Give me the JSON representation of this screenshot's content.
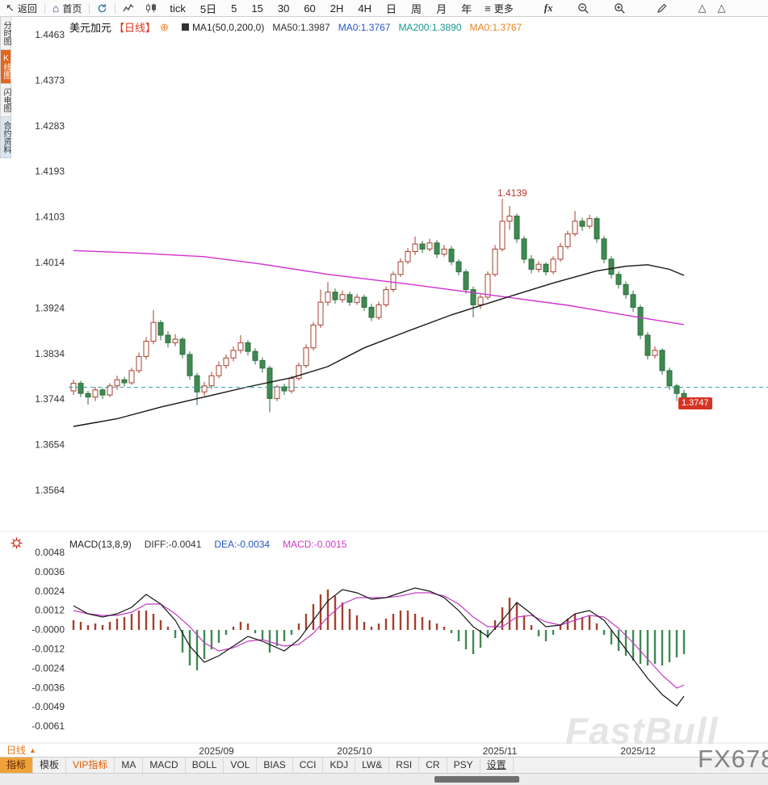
{
  "toolbar": {
    "back_label": "返回",
    "home_label": "首页",
    "periods": [
      "tick",
      "5日",
      "5",
      "15",
      "30",
      "60",
      "2H",
      "4H",
      "日",
      "周",
      "月",
      "年"
    ],
    "more_label": "更多",
    "fx_label": "fx"
  },
  "sidebar": {
    "items": [
      {
        "label": "分时图",
        "state": ""
      },
      {
        "label": "K线图",
        "state": "active"
      },
      {
        "label": "闪电图",
        "state": ""
      },
      {
        "label": "合约资料",
        "state": "info"
      }
    ]
  },
  "chart_header": {
    "symbol": "美元加元",
    "period_tag": "【日线】",
    "ma_title": "MA1(50,0,200,0)",
    "ma50": "MA50:1.3987",
    "ma0_blue": "MA0:1.3767",
    "ma200": "MA200:1.3890",
    "ma0_orange": "MA0:1.3767"
  },
  "macd_header": {
    "title": "MACD(13,8,9)",
    "diff": "DIFF:-0.0041",
    "dea": "DEA:-0.0034",
    "macd": "MACD:-0.0015"
  },
  "price_axis": {
    "labels": [
      "1.4463",
      "1.4373",
      "1.4283",
      "1.4193",
      "1.4103",
      "1.4014",
      "1.3924",
      "1.3834",
      "1.3744",
      "1.3654",
      "1.3564"
    ]
  },
  "macd_axis": {
    "labels": [
      "0.0048",
      "0.0036",
      "0.0024",
      "0.0012",
      "-0.0000",
      "-0.0012",
      "-0.0024",
      "-0.0036",
      "-0.0049",
      "-0.0061"
    ]
  },
  "annotations": {
    "high_label": "1.4139",
    "last_label": "1.3747",
    "ref_value": 1.3767
  },
  "bottom": {
    "period_selector": "日线",
    "selector_caret": "▲",
    "tabs": [
      {
        "label": "指标",
        "state": "selected"
      },
      {
        "label": "模板",
        "state": ""
      },
      {
        "label": "VIP指标",
        "state": "vip"
      },
      {
        "label": "MA",
        "state": ""
      },
      {
        "label": "MACD",
        "state": ""
      },
      {
        "label": "BOLL",
        "state": ""
      },
      {
        "label": "VOL",
        "state": ""
      },
      {
        "label": "BIAS",
        "state": ""
      },
      {
        "label": "CCI",
        "state": ""
      },
      {
        "label": "KDJ",
        "state": ""
      },
      {
        "label": "LW&",
        "state": ""
      },
      {
        "label": "RSI",
        "state": ""
      },
      {
        "label": "CR",
        "state": ""
      },
      {
        "label": "PSY",
        "state": ""
      },
      {
        "label": "设置",
        "state": "settings"
      }
    ]
  },
  "watermarks": {
    "fastbull": "FastBull",
    "fx678": "FX678"
  },
  "colors": {
    "up": "#a5402e",
    "down": "#2c6e3d",
    "down_fill": "#3f8a51",
    "ma50": "#161616",
    "ma200": "#d12fd1",
    "ref_line": "#2f9e9e",
    "diff_line": "#161616",
    "dea_line": "#c43ac4",
    "accent_orange": "#e67817",
    "badge_red": "#d63426"
  },
  "chart_data": {
    "type": "candlestick",
    "symbol": "美元加元 (USD/CAD)",
    "period": "日线",
    "ylim": [
      1.3564,
      1.4463
    ],
    "high": 1.4139,
    "last_close": 1.3747,
    "ma50_last": 1.3987,
    "ma200_last": 1.389,
    "x_months": [
      {
        "label": "2025/09",
        "index": 20
      },
      {
        "label": "2025/10",
        "index": 39
      },
      {
        "label": "2025/11",
        "index": 59
      },
      {
        "label": "2025/12",
        "index": 78
      }
    ],
    "candles": [
      [
        1.376,
        1.3782,
        1.3752,
        1.3775
      ],
      [
        1.3775,
        1.378,
        1.3748,
        1.3755
      ],
      [
        1.3755,
        1.376,
        1.3733,
        1.3748
      ],
      [
        1.3748,
        1.3768,
        1.374,
        1.3762
      ],
      [
        1.3762,
        1.3766,
        1.3744,
        1.3752
      ],
      [
        1.3752,
        1.3775,
        1.3748,
        1.377
      ],
      [
        1.377,
        1.379,
        1.3762,
        1.3782
      ],
      [
        1.3782,
        1.3788,
        1.3768,
        1.3776
      ],
      [
        1.3776,
        1.3806,
        1.3772,
        1.38
      ],
      [
        1.38,
        1.3836,
        1.3795,
        1.3828
      ],
      [
        1.3828,
        1.3866,
        1.3822,
        1.3858
      ],
      [
        1.3858,
        1.392,
        1.3852,
        1.3895
      ],
      [
        1.3895,
        1.39,
        1.386,
        1.387
      ],
      [
        1.387,
        1.3878,
        1.3846,
        1.3855
      ],
      [
        1.3855,
        1.3872,
        1.3848,
        1.3862
      ],
      [
        1.3862,
        1.3866,
        1.3824,
        1.3832
      ],
      [
        1.3832,
        1.3838,
        1.3782,
        1.379
      ],
      [
        1.379,
        1.3796,
        1.3732,
        1.3758
      ],
      [
        1.3758,
        1.3778,
        1.375,
        1.377
      ],
      [
        1.377,
        1.3798,
        1.3764,
        1.379
      ],
      [
        1.379,
        1.3818,
        1.3785,
        1.381
      ],
      [
        1.381,
        1.3832,
        1.3804,
        1.3825
      ],
      [
        1.3825,
        1.3848,
        1.3818,
        1.384
      ],
      [
        1.384,
        1.387,
        1.3834,
        1.3855
      ],
      [
        1.3855,
        1.386,
        1.383,
        1.3838
      ],
      [
        1.3838,
        1.3844,
        1.3812,
        1.382
      ],
      [
        1.382,
        1.3826,
        1.3796,
        1.3805
      ],
      [
        1.3805,
        1.381,
        1.3718,
        1.3745
      ],
      [
        1.3745,
        1.3772,
        1.374,
        1.3768
      ],
      [
        1.3768,
        1.3774,
        1.3752,
        1.376
      ],
      [
        1.376,
        1.379,
        1.3755,
        1.3785
      ],
      [
        1.3785,
        1.3816,
        1.378,
        1.381
      ],
      [
        1.381,
        1.3852,
        1.3805,
        1.3845
      ],
      [
        1.3845,
        1.3896,
        1.384,
        1.389
      ],
      [
        1.389,
        1.396,
        1.3884,
        1.3935
      ],
      [
        1.3935,
        1.3975,
        1.3928,
        1.3955
      ],
      [
        1.3955,
        1.3962,
        1.3932,
        1.394
      ],
      [
        1.394,
        1.3958,
        1.3934,
        1.395
      ],
      [
        1.395,
        1.3956,
        1.3928,
        1.3935
      ],
      [
        1.3935,
        1.3952,
        1.393,
        1.3945
      ],
      [
        1.3945,
        1.395,
        1.3918,
        1.3925
      ],
      [
        1.3925,
        1.3932,
        1.3898,
        1.3905
      ],
      [
        1.3905,
        1.3936,
        1.39,
        1.393
      ],
      [
        1.393,
        1.3966,
        1.3925,
        1.396
      ],
      [
        1.396,
        1.3996,
        1.3955,
        1.399
      ],
      [
        1.399,
        1.4022,
        1.3985,
        1.4015
      ],
      [
        1.4015,
        1.4042,
        1.401,
        1.4035
      ],
      [
        1.4035,
        1.4065,
        1.4028,
        1.405
      ],
      [
        1.405,
        1.4056,
        1.4032,
        1.404
      ],
      [
        1.404,
        1.406,
        1.4035,
        1.4052
      ],
      [
        1.4052,
        1.4058,
        1.4022,
        1.403
      ],
      [
        1.403,
        1.4048,
        1.4025,
        1.404
      ],
      [
        1.404,
        1.4046,
        1.4008,
        1.4015
      ],
      [
        1.4015,
        1.402,
        1.3988,
        1.3995
      ],
      [
        1.3995,
        1.4,
        1.3952,
        1.396
      ],
      [
        1.396,
        1.3966,
        1.3905,
        1.393
      ],
      [
        1.393,
        1.395,
        1.3922,
        1.3945
      ],
      [
        1.3945,
        1.3996,
        1.394,
        1.399
      ],
      [
        1.399,
        1.4048,
        1.3985,
        1.404
      ],
      [
        1.404,
        1.4139,
        1.4035,
        1.4095
      ],
      [
        1.4095,
        1.4125,
        1.4078,
        1.4105
      ],
      [
        1.4105,
        1.411,
        1.4052,
        1.406
      ],
      [
        1.406,
        1.4066,
        1.4012,
        1.402
      ],
      [
        1.402,
        1.4028,
        1.3992,
        1.4
      ],
      [
        1.4,
        1.4016,
        1.3994,
        1.401
      ],
      [
        1.401,
        1.4014,
        1.3988,
        1.3995
      ],
      [
        1.3995,
        1.4026,
        1.399,
        1.402
      ],
      [
        1.402,
        1.4052,
        1.4015,
        1.4045
      ],
      [
        1.4045,
        1.4076,
        1.404,
        1.407
      ],
      [
        1.407,
        1.4115,
        1.4065,
        1.4095
      ],
      [
        1.4095,
        1.4102,
        1.4076,
        1.4085
      ],
      [
        1.4085,
        1.4108,
        1.408,
        1.41
      ],
      [
        1.41,
        1.4104,
        1.4052,
        1.406
      ],
      [
        1.406,
        1.4066,
        1.4012,
        1.402
      ],
      [
        1.402,
        1.4026,
        1.3982,
        1.399
      ],
      [
        1.399,
        1.3996,
        1.3962,
        1.397
      ],
      [
        1.397,
        1.3976,
        1.3942,
        1.395
      ],
      [
        1.395,
        1.3958,
        1.3916,
        1.3925
      ],
      [
        1.3925,
        1.393,
        1.3862,
        1.387
      ],
      [
        1.387,
        1.3876,
        1.3822,
        1.383
      ],
      [
        1.383,
        1.3848,
        1.3824,
        1.384
      ],
      [
        1.384,
        1.3844,
        1.3792,
        1.38
      ],
      [
        1.38,
        1.3806,
        1.3762,
        1.377
      ],
      [
        1.377,
        1.3774,
        1.374,
        1.3755
      ],
      [
        1.3755,
        1.3762,
        1.3738,
        1.3747
      ]
    ],
    "ma50_points": [
      [
        0,
        1.369
      ],
      [
        6,
        1.3705
      ],
      [
        12,
        1.3728
      ],
      [
        18,
        1.3748
      ],
      [
        24,
        1.3768
      ],
      [
        30,
        1.3786
      ],
      [
        35,
        1.3808
      ],
      [
        40,
        1.3845
      ],
      [
        46,
        1.3878
      ],
      [
        52,
        1.391
      ],
      [
        59,
        1.3942
      ],
      [
        66,
        1.3973
      ],
      [
        72,
        1.3997
      ],
      [
        76,
        1.4006
      ],
      [
        79,
        1.4009
      ],
      [
        82,
        1.4
      ],
      [
        84,
        1.3988
      ]
    ],
    "ma200_points": [
      [
        0,
        1.4037
      ],
      [
        9,
        1.4032
      ],
      [
        18,
        1.4025
      ],
      [
        26,
        1.401
      ],
      [
        35,
        1.399
      ],
      [
        46,
        1.3971
      ],
      [
        57,
        1.395
      ],
      [
        68,
        1.3929
      ],
      [
        77,
        1.3907
      ],
      [
        84,
        1.3891
      ]
    ],
    "macd": {
      "params": [
        13,
        8,
        9
      ],
      "ylim": [
        -0.0061,
        0.0048
      ],
      "diff_last": -0.0041,
      "dea_last": -0.0034,
      "macd_last": -0.0015,
      "hist": [
        0.0006,
        0.0005,
        0.0003,
        0.0004,
        0.0003,
        0.0005,
        0.0007,
        0.0008,
        0.001,
        0.0012,
        0.0012,
        0.001,
        0.0006,
        0.0002,
        -0.0005,
        -0.0014,
        -0.0022,
        -0.0025,
        -0.0018,
        -0.0012,
        -0.0008,
        -0.0003,
        0.0002,
        0.0005,
        0.0004,
        -0.0002,
        -0.0006,
        -0.0014,
        -0.001,
        -0.0007,
        -0.0003,
        0.0004,
        0.001,
        0.0016,
        0.0022,
        0.0025,
        0.0021,
        0.0017,
        0.0013,
        0.0009,
        0.0005,
        0.0002,
        0.0004,
        0.0007,
        0.001,
        0.0012,
        0.0012,
        0.001,
        0.0008,
        0.0006,
        0.0004,
        0.0002,
        -0.0002,
        -0.0007,
        -0.0012,
        -0.0015,
        -0.0011,
        -0.0005,
        0.0006,
        0.0014,
        0.002,
        0.0017,
        0.0009,
        0.0003,
        -0.0004,
        -0.0007,
        -0.0003,
        0.0003,
        0.0007,
        0.001,
        0.0008,
        0.0009,
        0.0004,
        -0.0003,
        -0.0009,
        -0.0013,
        -0.0016,
        -0.0019,
        -0.0021,
        -0.0022,
        -0.0021,
        -0.0022,
        -0.002,
        -0.0017,
        -0.0015
      ],
      "diff_points": [
        [
          0,
          0.0015
        ],
        [
          2,
          0.001
        ],
        [
          4,
          0.0008
        ],
        [
          6,
          0.001
        ],
        [
          8,
          0.0014
        ],
        [
          10,
          0.0022
        ],
        [
          12,
          0.0016
        ],
        [
          14,
          0.0006
        ],
        [
          16,
          -0.001
        ],
        [
          18,
          -0.002
        ],
        [
          20,
          -0.0016
        ],
        [
          22,
          -0.001
        ],
        [
          24,
          -0.0004
        ],
        [
          26,
          -0.0007
        ],
        [
          29,
          -0.0013
        ],
        [
          31,
          -0.0006
        ],
        [
          33,
          0.0006
        ],
        [
          35,
          0.0018
        ],
        [
          37,
          0.0025
        ],
        [
          39,
          0.0023
        ],
        [
          41,
          0.0019
        ],
        [
          43,
          0.002
        ],
        [
          45,
          0.0023
        ],
        [
          47,
          0.0026
        ],
        [
          49,
          0.0024
        ],
        [
          51,
          0.002
        ],
        [
          53,
          0.0012
        ],
        [
          55,
          0.0002
        ],
        [
          57,
          -0.0004
        ],
        [
          59,
          0.0006
        ],
        [
          61,
          0.0017
        ],
        [
          63,
          0.001
        ],
        [
          65,
          0.0002
        ],
        [
          67,
          0.0003
        ],
        [
          69,
          0.001
        ],
        [
          71,
          0.0012
        ],
        [
          73,
          0.0006
        ],
        [
          75,
          -0.0006
        ],
        [
          77,
          -0.0018
        ],
        [
          79,
          -0.003
        ],
        [
          81,
          -0.004
        ],
        [
          83,
          -0.0047
        ],
        [
          84,
          -0.0041
        ]
      ],
      "dea_points": [
        [
          0,
          0.0012
        ],
        [
          2,
          0.001
        ],
        [
          4,
          0.0009
        ],
        [
          6,
          0.0009
        ],
        [
          8,
          0.0011
        ],
        [
          10,
          0.0016
        ],
        [
          12,
          0.0016
        ],
        [
          14,
          0.001
        ],
        [
          16,
          0.0002
        ],
        [
          18,
          -0.0008
        ],
        [
          20,
          -0.0013
        ],
        [
          22,
          -0.0011
        ],
        [
          24,
          -0.0007
        ],
        [
          26,
          -0.0006
        ],
        [
          29,
          -0.001
        ],
        [
          31,
          -0.0009
        ],
        [
          33,
          -0.0002
        ],
        [
          35,
          0.0008
        ],
        [
          37,
          0.0016
        ],
        [
          39,
          0.002
        ],
        [
          41,
          0.002
        ],
        [
          43,
          0.002
        ],
        [
          45,
          0.0021
        ],
        [
          47,
          0.0023
        ],
        [
          49,
          0.0023
        ],
        [
          51,
          0.0021
        ],
        [
          53,
          0.0016
        ],
        [
          55,
          0.0008
        ],
        [
          57,
          0.0002
        ],
        [
          59,
          0.0002
        ],
        [
          61,
          0.0008
        ],
        [
          63,
          0.0009
        ],
        [
          65,
          0.0005
        ],
        [
          67,
          0.0003
        ],
        [
          69,
          0.0006
        ],
        [
          71,
          0.0009
        ],
        [
          73,
          0.0008
        ],
        [
          75,
          0.0001
        ],
        [
          77,
          -0.0008
        ],
        [
          79,
          -0.0018
        ],
        [
          81,
          -0.0028
        ],
        [
          83,
          -0.0036
        ],
        [
          84,
          -0.0034
        ]
      ]
    }
  }
}
